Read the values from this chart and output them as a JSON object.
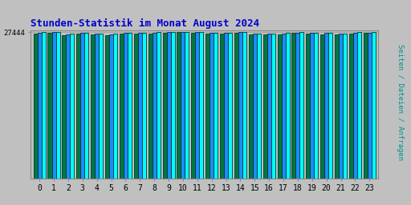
{
  "title": "Stunden-Statistik im Monat August 2024",
  "ylabel": "Seiten / Dateien / Anfragen",
  "hours": [
    0,
    1,
    2,
    3,
    4,
    5,
    6,
    7,
    8,
    9,
    10,
    11,
    12,
    13,
    14,
    15,
    16,
    17,
    18,
    19,
    20,
    21,
    22,
    23
  ],
  "ytick_label": "27444",
  "background_color": "#c0c0c0",
  "plot_bg_color": "#c0c0c0",
  "bar_colors": [
    "#007840",
    "#1c8cff",
    "#00ffff"
  ],
  "bar_edge_color": "#003333",
  "title_color": "#0000cc",
  "ylabel_color": "#009090",
  "tick_color": "#000000",
  "seiten": [
    27200,
    27300,
    26900,
    27100,
    27050,
    26900,
    27100,
    27150,
    27200,
    27380,
    27420,
    27350,
    27150,
    27150,
    27280,
    26950,
    26980,
    27050,
    27280,
    27100,
    27050,
    26980,
    27200,
    27250
  ],
  "dateien": [
    27350,
    27400,
    27050,
    27250,
    27180,
    27050,
    27250,
    27300,
    27330,
    27460,
    27490,
    27420,
    27310,
    27300,
    27400,
    27100,
    27140,
    27200,
    27350,
    27260,
    27240,
    27140,
    27340,
    27380
  ],
  "anfragen": [
    27420,
    27430,
    27150,
    27320,
    27220,
    27130,
    27310,
    27360,
    27390,
    27500,
    27530,
    27470,
    27370,
    27360,
    27440,
    27170,
    27200,
    27260,
    27400,
    27320,
    27300,
    27200,
    27400,
    27440
  ],
  "ylim_min": 0,
  "ylim_max": 27700,
  "ytick_val": 27444
}
